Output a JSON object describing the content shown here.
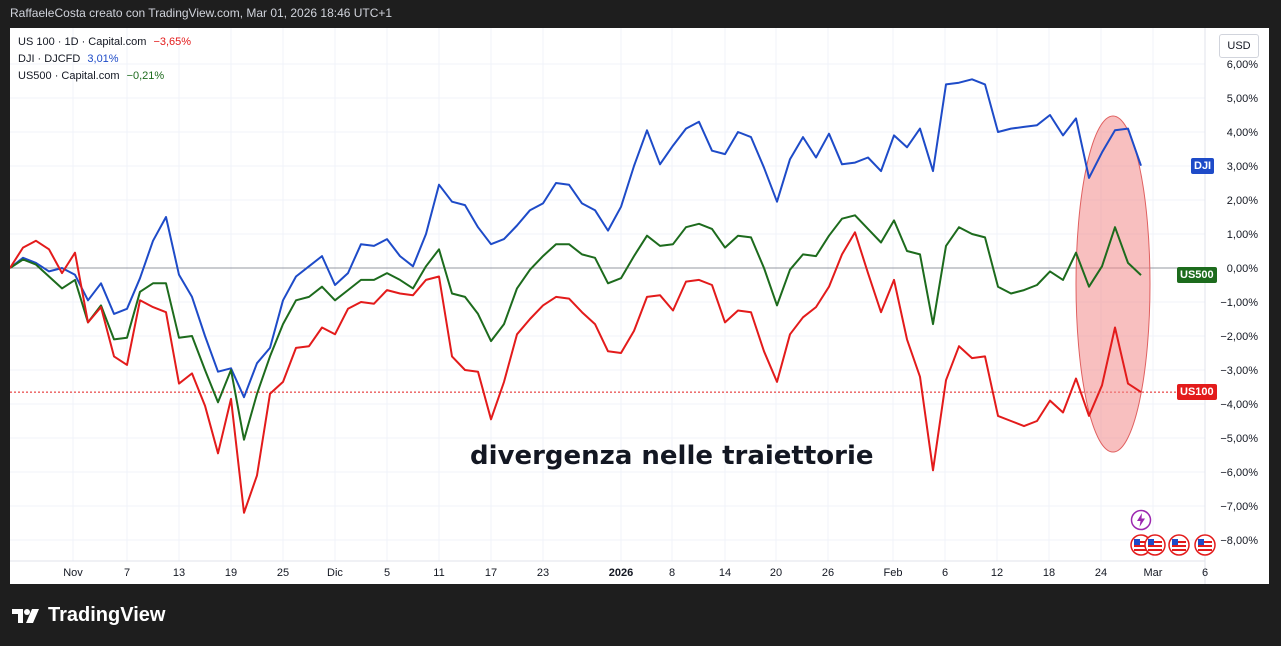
{
  "caption": "RaffaeleCosta creato con TradingView.com, Mar 01, 2026 18:46 UTC+1",
  "currency_label": "USD",
  "annotation": "divergenza nelle traiettorie",
  "brand": "TradingView",
  "legend": [
    {
      "title": "US 100 · 1D · Capital.com",
      "change": "−3,65%",
      "color": "#e31b1b"
    },
    {
      "title": "DJI · DJCFD",
      "change": "3,01%",
      "color": "#1e4bc8"
    },
    {
      "title": "US500 · Capital.com",
      "change": "−0,21%",
      "color": "#1d6b1d"
    }
  ],
  "colors": {
    "us100": "#e31b1b",
    "dji": "#1e4bc8",
    "us500": "#1d6b1d",
    "highlight": "#f28b8b"
  },
  "icons": [
    "lightning-icon",
    "us-flag-icon"
  ],
  "chart_data": {
    "type": "line",
    "x_tick_labels": [
      "Nov",
      "7",
      "13",
      "19",
      "25",
      "Dic",
      "5",
      "11",
      "17",
      "23",
      "2026",
      "8",
      "14",
      "20",
      "26",
      "Feb",
      "6",
      "12",
      "18",
      "24",
      "Mar",
      "6"
    ],
    "y_tick_labels": [
      "6,00%",
      "5,00%",
      "4,00%",
      "3,00%",
      "2,00%",
      "1,00%",
      "0,00%",
      "−1,00%",
      "−2,00%",
      "−3,00%",
      "−4,00%",
      "−5,00%",
      "−6,00%",
      "−7,00%",
      "−8,00%"
    ],
    "ylim": [
      -8.8,
      6.2
    ],
    "series": [
      {
        "name": "DJI",
        "key": "dji",
        "last_value": 3.01,
        "values": [
          0.0,
          0.3,
          0.15,
          -0.1,
          0.0,
          -0.2,
          -0.95,
          -0.45,
          -1.35,
          -1.2,
          -0.3,
          0.8,
          1.5,
          -0.2,
          -0.85,
          -2.0,
          -3.05,
          -2.95,
          -3.8,
          -2.8,
          -2.35,
          -0.95,
          -0.25,
          0.05,
          0.35,
          -0.5,
          -0.15,
          0.7,
          0.65,
          0.85,
          0.35,
          0.05,
          1.0,
          2.45,
          1.95,
          1.85,
          1.2,
          0.7,
          0.85,
          1.25,
          1.7,
          1.9,
          2.5,
          2.45,
          1.9,
          1.7,
          1.1,
          1.8,
          3.0,
          4.05,
          3.05,
          3.6,
          4.1,
          4.3,
          3.45,
          3.35,
          4.0,
          3.85,
          2.95,
          1.95,
          3.2,
          3.85,
          3.25,
          3.95,
          3.05,
          3.1,
          3.25,
          2.85,
          3.9,
          3.55,
          4.1,
          2.85,
          5.4,
          5.45,
          5.55,
          5.4,
          4.0,
          4.1,
          4.15,
          4.2,
          4.5,
          3.9,
          4.4,
          2.65,
          3.4,
          4.05,
          4.1,
          3.01
        ]
      },
      {
        "name": "US500",
        "key": "us500",
        "last_value": -0.21,
        "values": [
          0.0,
          0.25,
          0.1,
          -0.25,
          -0.6,
          -0.35,
          -1.6,
          -1.1,
          -2.1,
          -2.05,
          -0.7,
          -0.45,
          -0.45,
          -2.05,
          -2.0,
          -3.0,
          -3.95,
          -3.0,
          -5.05,
          -3.7,
          -2.6,
          -1.65,
          -0.95,
          -0.85,
          -0.55,
          -0.95,
          -0.65,
          -0.35,
          -0.35,
          -0.15,
          -0.35,
          -0.6,
          0.05,
          0.55,
          -0.75,
          -0.85,
          -1.35,
          -2.15,
          -1.65,
          -0.6,
          -0.05,
          0.35,
          0.7,
          0.7,
          0.4,
          0.3,
          -0.45,
          -0.3,
          0.35,
          0.95,
          0.65,
          0.7,
          1.2,
          1.3,
          1.15,
          0.6,
          0.95,
          0.9,
          0.0,
          -1.1,
          -0.05,
          0.4,
          0.35,
          0.95,
          1.45,
          1.55,
          1.15,
          0.75,
          1.4,
          0.5,
          0.4,
          -1.65,
          0.65,
          1.2,
          1.0,
          0.9,
          -0.55,
          -0.75,
          -0.65,
          -0.5,
          -0.1,
          -0.35,
          0.45,
          -0.55,
          0.05,
          1.2,
          0.15,
          -0.21
        ]
      },
      {
        "name": "US100",
        "key": "us100",
        "last_value": -3.65,
        "values": [
          0.0,
          0.6,
          0.8,
          0.55,
          -0.15,
          0.45,
          -1.6,
          -1.15,
          -2.6,
          -2.85,
          -0.95,
          -1.15,
          -1.3,
          -3.4,
          -3.1,
          -4.05,
          -5.45,
          -3.85,
          -7.2,
          -6.1,
          -3.7,
          -3.35,
          -2.35,
          -2.3,
          -1.75,
          -1.95,
          -1.2,
          -1.0,
          -1.05,
          -0.65,
          -0.75,
          -0.8,
          -0.35,
          -0.25,
          -2.6,
          -3.0,
          -3.05,
          -4.45,
          -3.35,
          -1.95,
          -1.5,
          -1.1,
          -0.85,
          -0.9,
          -1.3,
          -1.65,
          -2.45,
          -2.5,
          -1.85,
          -0.85,
          -0.8,
          -1.25,
          -0.4,
          -0.35,
          -0.5,
          -1.6,
          -1.25,
          -1.3,
          -2.45,
          -3.35,
          -1.95,
          -1.45,
          -1.15,
          -0.55,
          0.4,
          1.05,
          -0.15,
          -1.3,
          -0.35,
          -2.1,
          -3.2,
          -5.95,
          -3.3,
          -2.3,
          -2.65,
          -2.6,
          -4.35,
          -4.5,
          -4.65,
          -4.5,
          -3.9,
          -4.25,
          -3.25,
          -4.35,
          -3.45,
          -1.75,
          -3.4,
          -3.65
        ]
      }
    ]
  }
}
